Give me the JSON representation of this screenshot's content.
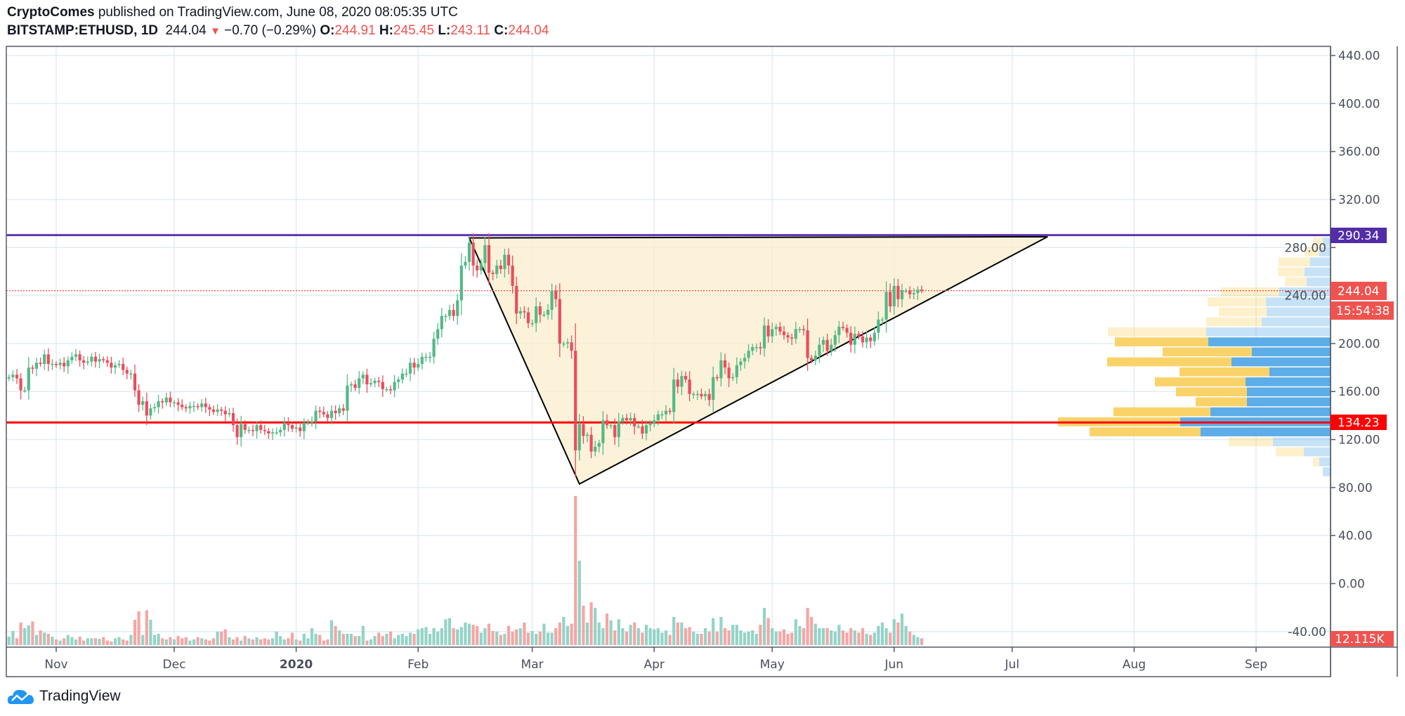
{
  "header": {
    "author": "CryptoComes",
    "published": "published on TradingView.com, June 08, 2020 08:05:35 UTC",
    "symbol": "BITSTAMP:ETHUSD, 1D",
    "last": "244.04",
    "change": "−0.70 (−0.29%)",
    "o_label": "O:",
    "o": "244.91",
    "h_label": "H:",
    "h": "245.45",
    "l_label": "L:",
    "l": "243.11",
    "c_label": "C:",
    "c": "244.04"
  },
  "footer": {
    "brand": "TradingView"
  },
  "colors": {
    "up": "#53b987",
    "down": "#eb4d5c",
    "resistance": "#5e35b1",
    "support": "#ff0000",
    "last_price": "#ef5350",
    "triangle_fill": "#f9edcc",
    "vp_up": "#5dade8",
    "vp_down": "#f9d36a"
  },
  "chart_data": {
    "type": "candlestick",
    "title": "",
    "first_date": "2019-10-20",
    "first_open": 171,
    "close": [
      172,
      174,
      171,
      161,
      161,
      180,
      179,
      184,
      183,
      191,
      183,
      183,
      182,
      184,
      181,
      186,
      189,
      191,
      186,
      184,
      185,
      189,
      185,
      187,
      186,
      184,
      180,
      182,
      183,
      178,
      175,
      175,
      161,
      149,
      152,
      140,
      146,
      147,
      152,
      151,
      155,
      151,
      151,
      149,
      147,
      146,
      148,
      148,
      147,
      150,
      147,
      145,
      143,
      145,
      144,
      141,
      142,
      132,
      122,
      133,
      128,
      128,
      127,
      132,
      128,
      127,
      125,
      126,
      126,
      128,
      134,
      132,
      129,
      130,
      127,
      134,
      134,
      135,
      144,
      143,
      141,
      138,
      144,
      142,
      146,
      144,
      165,
      166,
      163,
      171,
      174,
      166,
      167,
      169,
      168,
      162,
      162,
      161,
      168,
      170,
      175,
      175,
      184,
      180,
      183,
      189,
      189,
      189,
      204,
      212,
      223,
      223,
      228,
      223,
      236,
      265,
      268,
      284,
      265,
      261,
      267,
      282,
      259,
      258,
      265,
      262,
      274,
      265,
      248,
      225,
      227,
      226,
      217,
      217,
      231,
      224,
      224,
      228,
      244,
      237,
      200,
      200,
      201,
      194,
      111,
      133,
      123,
      124,
      110,
      114,
      117,
      136,
      132,
      132,
      122,
      135,
      138,
      136,
      138,
      131,
      131,
      125,
      132,
      133,
      136,
      141,
      141,
      144,
      143,
      170,
      164,
      173,
      170,
      158,
      158,
      158,
      156,
      158,
      153,
      172,
      171,
      186,
      180,
      171,
      172,
      182,
      185,
      188,
      194,
      197,
      197,
      196,
      215,
      206,
      212,
      214,
      210,
      207,
      205,
      204,
      212,
      212,
      211,
      188,
      186,
      190,
      199,
      203,
      194,
      199,
      207,
      214,
      213,
      209,
      199,
      208,
      206,
      201,
      205,
      202,
      209,
      220,
      220,
      243,
      231,
      248,
      237,
      244,
      244,
      241,
      242,
      245,
      244.04
    ],
    "volume_k": [
      15,
      25,
      12,
      40,
      30,
      35,
      42,
      18,
      26,
      22,
      20,
      15,
      10,
      8,
      12,
      18,
      14,
      10,
      15,
      8,
      12,
      12,
      12,
      11,
      14,
      8,
      6,
      12,
      14,
      10,
      8,
      18,
      45,
      60,
      18,
      62,
      45,
      18,
      20,
      12,
      10,
      14,
      10,
      16,
      12,
      14,
      8,
      10,
      14,
      12,
      10,
      8,
      12,
      24,
      24,
      28,
      14,
      10,
      14,
      8,
      16,
      12,
      10,
      14,
      10,
      12,
      10,
      12,
      24,
      16,
      10,
      12,
      22,
      10,
      8,
      20,
      12,
      30,
      20,
      18,
      8,
      10,
      44,
      34,
      26,
      20,
      20,
      20,
      16,
      16,
      34,
      8,
      10,
      16,
      22,
      16,
      20,
      24,
      12,
      18,
      20,
      16,
      22,
      20,
      28,
      30,
      32,
      20,
      30,
      24,
      30,
      46,
      48,
      30,
      28,
      32,
      40,
      38,
      36,
      34,
      22,
      30,
      38,
      25,
      24,
      18,
      20,
      34,
      24,
      28,
      30,
      40,
      22,
      25,
      20,
      24,
      38,
      22,
      22,
      30,
      40,
      50,
      34,
      38,
      265,
      150,
      70,
      40,
      76,
      66,
      40,
      30,
      56,
      44,
      26,
      46,
      30,
      24,
      36,
      40,
      30,
      22,
      36,
      30,
      28,
      30,
      22,
      26,
      18,
      50,
      40,
      40,
      30,
      32,
      24,
      20,
      20,
      30,
      24,
      48,
      24,
      50,
      30,
      26,
      36,
      36,
      26,
      22,
      24,
      26,
      20,
      36,
      66,
      48,
      30,
      24,
      24,
      28,
      20,
      22,
      46,
      34,
      30,
      66,
      50,
      38,
      30,
      30,
      30,
      26,
      24,
      36,
      26,
      22,
      30,
      26,
      22,
      30,
      20,
      18,
      22,
      34,
      40,
      30,
      22,
      46,
      40,
      56,
      34,
      24,
      18,
      14,
      12.115
    ],
    "y_ticks": [
      "440.00",
      "400.00",
      "360.00",
      "320.00",
      "280.00",
      "240.00",
      "200.00",
      "160.00",
      "120.00",
      "80.00",
      "40.00",
      "0.00",
      "-40.00"
    ],
    "y_tick_values": [
      440,
      400,
      360,
      320,
      280,
      240,
      200,
      160,
      120,
      80,
      40,
      0,
      -40
    ],
    "x_ticks": [
      {
        "label": "Nov",
        "date": "2019-11-01",
        "bold": false
      },
      {
        "label": "Dec",
        "date": "2019-12-01",
        "bold": false
      },
      {
        "label": "2020",
        "date": "2020-01-01",
        "bold": true
      },
      {
        "label": "Feb",
        "date": "2020-02-01",
        "bold": false
      },
      {
        "label": "Mar",
        "date": "2020-03-01",
        "bold": false
      },
      {
        "label": "Apr",
        "date": "2020-04-01",
        "bold": false
      },
      {
        "label": "May",
        "date": "2020-05-01",
        "bold": false
      },
      {
        "label": "Jun",
        "date": "2020-06-01",
        "bold": false
      },
      {
        "label": "Jul",
        "date": "2020-07-01",
        "bold": false
      },
      {
        "label": "Aug",
        "date": "2020-08-01",
        "bold": false
      },
      {
        "label": "Sep",
        "date": "2020-09-01",
        "bold": false
      }
    ],
    "grid": true,
    "horizontal_lines": [
      {
        "price": 290.34,
        "label": "290.34",
        "style": "solid",
        "color": "#5e35b1"
      },
      {
        "price": 134.23,
        "label": "134.23",
        "style": "solid",
        "color": "#ff0000"
      },
      {
        "price": 244.04,
        "label": "244.04",
        "style": "dotted",
        "color": "#ef5350"
      }
    ],
    "countdown": "15:54:38",
    "volume_label": "12.115K",
    "triangle": [
      {
        "date": "2020-02-14",
        "price": 288
      },
      {
        "date": "2020-03-13",
        "price": 83
      },
      {
        "date": "2020-07-10",
        "price": 289
      }
    ],
    "volume_profile": {
      "top_price": 289,
      "row_size": 8.33,
      "rows": [
        {
          "up": 11,
          "down": 14,
          "value_area": false
        },
        {
          "up": 16,
          "down": 21,
          "value_area": false
        },
        {
          "up": 29,
          "down": 45,
          "value_area": false
        },
        {
          "up": 37,
          "down": 38,
          "value_area": false
        },
        {
          "up": 34,
          "down": 31,
          "value_area": false
        },
        {
          "up": 73,
          "down": 83,
          "value_area": false
        },
        {
          "up": 92,
          "down": 83,
          "value_area": false
        },
        {
          "up": 91,
          "down": 68,
          "value_area": false
        },
        {
          "up": 98,
          "down": 79,
          "value_area": false
        },
        {
          "up": 177,
          "down": 140,
          "value_area": false
        },
        {
          "up": 174,
          "down": 133,
          "value_area": true
        },
        {
          "up": 112,
          "down": 127,
          "value_area": true
        },
        {
          "up": 141,
          "down": 177,
          "value_area": true
        },
        {
          "up": 87,
          "down": 128,
          "value_area": true
        },
        {
          "up": 121,
          "down": 129,
          "value_area": true
        },
        {
          "up": 119,
          "down": 101,
          "value_area": true
        },
        {
          "up": 119,
          "down": 73,
          "value_area": true
        },
        {
          "up": 171,
          "down": 138,
          "value_area": true
        },
        {
          "up": 214,
          "down": 174,
          "value_area": true
        },
        {
          "up": 185,
          "down": 158,
          "value_area": true
        },
        {
          "up": 82,
          "down": 63,
          "value_area": false
        },
        {
          "up": 38,
          "down": 40,
          "value_area": false
        },
        {
          "up": 16,
          "down": 9,
          "value_area": false
        },
        {
          "up": 11,
          "down": 0,
          "value_area": false
        }
      ]
    }
  }
}
